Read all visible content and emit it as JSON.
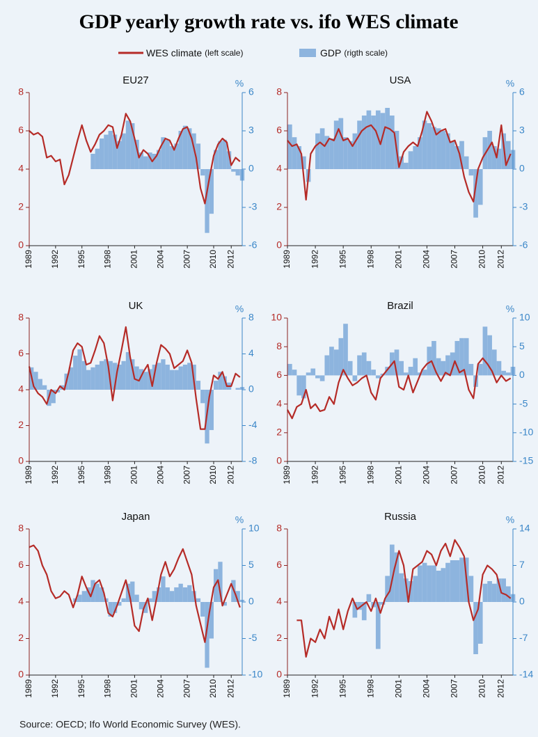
{
  "title": "GDP yearly growth rate vs. ifo WES climate",
  "legend": [
    {
      "name": "WES climate",
      "note": "(left scale)",
      "color": "#b52b27"
    },
    {
      "name": "GDP",
      "note": "(rigth scale)",
      "color": "#8db4de"
    }
  ],
  "source": "Source: OECD; Ifo World Economic Survey (WES).",
  "chart_data": [
    {
      "type": "combo",
      "title": "EU27",
      "y2label": "%",
      "x": [
        1989,
        1989.5,
        1990,
        1990.5,
        1991,
        1991.5,
        1992,
        1992.5,
        1993,
        1993.5,
        1994,
        1994.5,
        1995,
        1995.5,
        1996,
        1996.5,
        1997,
        1997.5,
        1998,
        1998.5,
        1999,
        1999.5,
        2000,
        2000.5,
        2001,
        2001.5,
        2002,
        2002.5,
        2003,
        2003.5,
        2004,
        2004.5,
        2005,
        2005.5,
        2006,
        2006.5,
        2007,
        2007.5,
        2008,
        2008.5,
        2009,
        2009.5,
        2010,
        2010.5,
        2011,
        2011.5,
        2012,
        2012.5,
        2013
      ],
      "xlim": [
        1989,
        2013.25
      ],
      "xticks": [
        1989,
        1992,
        1995,
        1998,
        2001,
        2004,
        2007,
        2010,
        2012
      ],
      "ylim": [
        0,
        8
      ],
      "yticks": [
        0,
        2,
        4,
        6,
        8
      ],
      "y2lim": [
        -6,
        6
      ],
      "y2ticks": [
        -6,
        -3,
        0,
        3,
        6
      ],
      "series": [
        {
          "type": "line",
          "axis": "y",
          "values": [
            6,
            5.8,
            5.9,
            5.7,
            4.6,
            4.7,
            4.4,
            4.5,
            3.2,
            3.7,
            4.6,
            5.5,
            6.3,
            5.5,
            4.9,
            5.3,
            5.8,
            6.0,
            6.3,
            6.2,
            5.1,
            5.8,
            6.9,
            6.5,
            5.6,
            4.6,
            5.0,
            4.8,
            4.4,
            4.7,
            5.2,
            5.6,
            5.5,
            5.0,
            5.6,
            6.1,
            6.2,
            5.6,
            4.6,
            3.0,
            2.2,
            3.5,
            4.7,
            5.3,
            5.6,
            5.4,
            4.2,
            4.6,
            4.4
          ]
        },
        {
          "type": "bar",
          "axis": "y2",
          "values": [
            null,
            null,
            null,
            null,
            null,
            null,
            null,
            null,
            null,
            null,
            null,
            null,
            null,
            null,
            1.2,
            1.6,
            2.4,
            2.7,
            3.0,
            2.7,
            2.2,
            2.8,
            3.8,
            3.6,
            2.3,
            1.3,
            1.0,
            1.3,
            1.2,
            1.5,
            2.5,
            2.3,
            1.8,
            2.0,
            3.0,
            3.4,
            3.2,
            2.8,
            2.0,
            -0.5,
            -5.0,
            -3.5,
            1.5,
            2.2,
            2.3,
            1.4,
            -0.2,
            -0.5,
            -0.9
          ]
        }
      ]
    },
    {
      "type": "combo",
      "title": "USA",
      "y2label": "%",
      "x": [
        1989,
        1989.5,
        1990,
        1990.5,
        1991,
        1991.5,
        1992,
        1992.5,
        1993,
        1993.5,
        1994,
        1994.5,
        1995,
        1995.5,
        1996,
        1996.5,
        1997,
        1997.5,
        1998,
        1998.5,
        1999,
        1999.5,
        2000,
        2000.5,
        2001,
        2001.5,
        2002,
        2002.5,
        2003,
        2003.5,
        2004,
        2004.5,
        2005,
        2005.5,
        2006,
        2006.5,
        2007,
        2007.5,
        2008,
        2008.5,
        2009,
        2009.5,
        2010,
        2010.5,
        2011,
        2011.5,
        2012,
        2012.5,
        2013
      ],
      "xlim": [
        1989,
        2013.25
      ],
      "xticks": [
        1989,
        1992,
        1995,
        1998,
        2001,
        2004,
        2007,
        2010,
        2012
      ],
      "ylim": [
        0,
        8
      ],
      "yticks": [
        0,
        2,
        4,
        6,
        8
      ],
      "y2lim": [
        -6,
        6
      ],
      "y2ticks": [
        -6,
        -3,
        0,
        3,
        6
      ],
      "series": [
        {
          "type": "line",
          "axis": "y",
          "values": [
            5.5,
            5.2,
            5.3,
            4.8,
            2.4,
            4.8,
            5.2,
            5.4,
            5.2,
            5.6,
            5.5,
            6.1,
            5.5,
            5.6,
            5.2,
            5.6,
            6.0,
            6.2,
            6.3,
            6.0,
            5.3,
            6.2,
            6.1,
            5.9,
            4.1,
            4.9,
            5.2,
            5.4,
            5.2,
            6.0,
            7.0,
            6.5,
            5.8,
            6.0,
            6.1,
            5.4,
            5.5,
            4.8,
            3.6,
            2.8,
            2.3,
            4.0,
            4.6,
            5.0,
            5.4,
            4.6,
            6.3,
            4.2,
            4.8
          ]
        },
        {
          "type": "bar",
          "axis": "y2",
          "values": [
            3.5,
            2.5,
            1.8,
            1.0,
            -1.0,
            0.0,
            2.8,
            3.2,
            2.6,
            2.4,
            3.8,
            4.0,
            2.5,
            2.2,
            2.8,
            3.8,
            4.2,
            4.6,
            4.2,
            4.6,
            4.4,
            4.8,
            4.2,
            3.0,
            1.0,
            0.5,
            1.4,
            1.8,
            2.5,
            3.8,
            3.6,
            3.3,
            3.2,
            3.0,
            2.8,
            2.2,
            1.8,
            2.2,
            1.0,
            -0.5,
            -3.8,
            -2.8,
            2.5,
            3.0,
            1.8,
            1.6,
            2.8,
            2.2,
            1.5
          ]
        }
      ]
    },
    {
      "type": "combo",
      "title": "UK",
      "y2label": "%",
      "x": [
        1989,
        1989.5,
        1990,
        1990.5,
        1991,
        1991.5,
        1992,
        1992.5,
        1993,
        1993.5,
        1994,
        1994.5,
        1995,
        1995.5,
        1996,
        1996.5,
        1997,
        1997.5,
        1998,
        1998.5,
        1999,
        1999.5,
        2000,
        2000.5,
        2001,
        2001.5,
        2002,
        2002.5,
        2003,
        2003.5,
        2004,
        2004.5,
        2005,
        2005.5,
        2006,
        2006.5,
        2007,
        2007.5,
        2008,
        2008.5,
        2009,
        2009.5,
        2010,
        2010.5,
        2011,
        2011.5,
        2012,
        2012.5,
        2013
      ],
      "xlim": [
        1989,
        2013.25
      ],
      "xticks": [
        1989,
        1992,
        1995,
        1998,
        2001,
        2004,
        2007,
        2010,
        2012
      ],
      "ylim": [
        0,
        8
      ],
      "yticks": [
        0,
        2,
        4,
        6,
        8
      ],
      "y2lim": [
        -8,
        8
      ],
      "y2ticks": [
        -8,
        -4,
        0,
        4,
        8
      ],
      "series": [
        {
          "type": "line",
          "axis": "y",
          "values": [
            5.3,
            4.2,
            3.8,
            3.6,
            3.2,
            4.0,
            3.8,
            4.2,
            4.0,
            5.0,
            6.2,
            6.6,
            6.4,
            5.4,
            5.5,
            6.2,
            7.0,
            6.6,
            5.3,
            3.4,
            5.0,
            6.2,
            7.5,
            5.8,
            4.6,
            4.5,
            5.0,
            5.4,
            4.2,
            5.5,
            6.5,
            6.3,
            6.0,
            5.2,
            5.4,
            5.6,
            6.2,
            5.5,
            3.5,
            1.8,
            1.8,
            3.6,
            4.8,
            4.6,
            5.0,
            4.2,
            4.2,
            4.9,
            4.7
          ]
        },
        {
          "type": "bar",
          "axis": "y2",
          "values": [
            2.5,
            2.0,
            1.2,
            0.5,
            -1.8,
            -1.5,
            -0.3,
            0.5,
            1.8,
            2.5,
            3.8,
            4.5,
            3.2,
            2.2,
            2.5,
            2.8,
            3.2,
            3.4,
            3.2,
            3.0,
            2.8,
            3.2,
            4.2,
            3.4,
            2.6,
            2.3,
            2.0,
            2.3,
            2.8,
            3.0,
            3.4,
            2.8,
            2.2,
            2.2,
            2.6,
            2.8,
            3.0,
            2.8,
            1.0,
            -1.5,
            -6.0,
            -4.5,
            1.0,
            2.0,
            1.5,
            0.8,
            0.0,
            0.2,
            0.3
          ]
        }
      ]
    },
    {
      "type": "combo",
      "title": "Brazil",
      "y2label": "%",
      "x": [
        1989,
        1989.5,
        1990,
        1990.5,
        1991,
        1991.5,
        1992,
        1992.5,
        1993,
        1993.5,
        1994,
        1994.5,
        1995,
        1995.5,
        1996,
        1996.5,
        1997,
        1997.5,
        1998,
        1998.5,
        1999,
        1999.5,
        2000,
        2000.5,
        2001,
        2001.5,
        2002,
        2002.5,
        2003,
        2003.5,
        2004,
        2004.5,
        2005,
        2005.5,
        2006,
        2006.5,
        2007,
        2007.5,
        2008,
        2008.5,
        2009,
        2009.5,
        2010,
        2010.5,
        2011,
        2011.5,
        2012,
        2012.5,
        2013
      ],
      "xlim": [
        1989,
        2013.25
      ],
      "xticks": [
        1989,
        1992,
        1995,
        1998,
        2001,
        2004,
        2007,
        2010,
        2012
      ],
      "ylim": [
        0,
        10
      ],
      "yticks": [
        0,
        2,
        4,
        6,
        8,
        10
      ],
      "y2lim": [
        -15,
        10
      ],
      "y2ticks": [
        -15,
        -10,
        -5,
        0,
        5,
        10
      ],
      "series": [
        {
          "type": "line",
          "axis": "y",
          "values": [
            3.6,
            3.0,
            3.8,
            4.0,
            5.0,
            3.7,
            4.0,
            3.5,
            3.6,
            4.5,
            4.0,
            5.5,
            6.4,
            5.8,
            5.3,
            5.5,
            5.8,
            6.0,
            4.8,
            4.3,
            5.8,
            6.2,
            6.6,
            7.0,
            5.2,
            5.0,
            6.0,
            4.8,
            5.6,
            6.4,
            6.8,
            7.0,
            6.2,
            5.6,
            6.2,
            6.0,
            7.0,
            6.2,
            6.4,
            5.0,
            4.4,
            6.8,
            7.2,
            6.8,
            6.3,
            5.5,
            6.0,
            5.6,
            5.8
          ]
        },
        {
          "type": "bar",
          "axis": "y2",
          "values": [
            2.0,
            1.0,
            -3.5,
            -4.0,
            0.5,
            1.2,
            -0.5,
            -1.0,
            3.5,
            5.0,
            4.5,
            6.5,
            9.0,
            2.5,
            -1.0,
            3.5,
            4.0,
            2.5,
            1.0,
            -0.5,
            0.3,
            1.5,
            4.0,
            4.5,
            2.5,
            0.5,
            1.5,
            3.0,
            0.5,
            1.0,
            5.0,
            6.0,
            3.0,
            2.5,
            3.5,
            4.0,
            6.0,
            6.5,
            6.5,
            2.0,
            -2.0,
            2.0,
            8.5,
            7.0,
            4.5,
            2.5,
            0.8,
            0.5,
            1.5
          ]
        }
      ]
    },
    {
      "type": "combo",
      "title": "Japan",
      "y2label": "%",
      "x": [
        1989,
        1989.5,
        1990,
        1990.5,
        1991,
        1991.5,
        1992,
        1992.5,
        1993,
        1993.5,
        1994,
        1994.5,
        1995,
        1995.5,
        1996,
        1996.5,
        1997,
        1997.5,
        1998,
        1998.5,
        1999,
        1999.5,
        2000,
        2000.5,
        2001,
        2001.5,
        2002,
        2002.5,
        2003,
        2003.5,
        2004,
        2004.5,
        2005,
        2005.5,
        2006,
        2006.5,
        2007,
        2007.5,
        2008,
        2008.5,
        2009,
        2009.5,
        2010,
        2010.5,
        2011,
        2011.5,
        2012,
        2012.5,
        2013
      ],
      "xlim": [
        1989,
        2013.25
      ],
      "xticks": [
        1989,
        1992,
        1995,
        1998,
        2001,
        2004,
        2007,
        2010,
        2012
      ],
      "ylim": [
        0,
        8
      ],
      "yticks": [
        0,
        2,
        4,
        6,
        8
      ],
      "y2lim": [
        -10,
        10
      ],
      "y2ticks": [
        -10,
        -5,
        0,
        5,
        10
      ],
      "series": [
        {
          "type": "line",
          "axis": "y",
          "values": [
            7.0,
            7.1,
            6.8,
            6.0,
            5.5,
            4.6,
            4.2,
            4.3,
            4.6,
            4.4,
            3.7,
            4.4,
            5.4,
            4.8,
            4.3,
            5.0,
            5.2,
            4.5,
            3.4,
            3.2,
            3.8,
            4.5,
            5.2,
            4.2,
            2.7,
            2.4,
            3.6,
            4.2,
            3.0,
            4.2,
            5.5,
            6.2,
            5.4,
            5.8,
            6.4,
            6.9,
            6.2,
            5.5,
            3.8,
            2.8,
            1.8,
            3.4,
            4.8,
            5.2,
            3.8,
            4.4,
            5.0,
            4.4,
            3.7
          ]
        },
        {
          "type": "bar",
          "axis": "y2",
          "values": [
            null,
            null,
            null,
            null,
            null,
            null,
            null,
            null,
            null,
            null,
            0.5,
            1.0,
            1.5,
            2.0,
            3.0,
            2.5,
            2.0,
            0.5,
            -2.0,
            -1.5,
            -0.5,
            0.5,
            2.5,
            2.8,
            1.0,
            -1.0,
            -1.5,
            0.5,
            1.5,
            2.0,
            3.5,
            2.0,
            1.5,
            2.0,
            2.5,
            2.0,
            2.3,
            1.5,
            0.5,
            -2.0,
            -9.0,
            -5.0,
            4.5,
            5.5,
            -0.5,
            0.0,
            3.0,
            1.5,
            0.3
          ]
        }
      ]
    },
    {
      "type": "combo",
      "title": "Russia",
      "y2label": "%",
      "x": [
        1989,
        1989.5,
        1990,
        1990.5,
        1991,
        1991.5,
        1992,
        1992.5,
        1993,
        1993.5,
        1994,
        1994.5,
        1995,
        1995.5,
        1996,
        1996.5,
        1997,
        1997.5,
        1998,
        1998.5,
        1999,
        1999.5,
        2000,
        2000.5,
        2001,
        2001.5,
        2002,
        2002.5,
        2003,
        2003.5,
        2004,
        2004.5,
        2005,
        2005.5,
        2006,
        2006.5,
        2007,
        2007.5,
        2008,
        2008.5,
        2009,
        2009.5,
        2010,
        2010.5,
        2011,
        2011.5,
        2012,
        2012.5,
        2013
      ],
      "xlim": [
        1989,
        2013.25
      ],
      "xticks": [
        1989,
        1992,
        1995,
        1998,
        2001,
        2004,
        2007,
        2010,
        2012
      ],
      "ylim": [
        0,
        8
      ],
      "yticks": [
        0,
        2,
        4,
        6,
        8
      ],
      "y2lim": [
        -14,
        14
      ],
      "y2ticks": [
        -14,
        -7,
        0,
        7,
        14
      ],
      "series": [
        {
          "type": "line",
          "axis": "y",
          "values": [
            null,
            null,
            3.0,
            3.0,
            1.0,
            2.0,
            1.8,
            2.5,
            2.0,
            3.2,
            2.5,
            3.6,
            2.5,
            3.5,
            4.2,
            3.6,
            3.8,
            4.0,
            3.5,
            4.2,
            3.4,
            4.2,
            4.6,
            5.8,
            6.8,
            6.0,
            4.0,
            5.8,
            6.0,
            6.2,
            6.8,
            6.6,
            6.0,
            6.8,
            7.2,
            6.5,
            7.4,
            7.0,
            6.5,
            4.0,
            3.0,
            3.6,
            5.5,
            6.0,
            5.8,
            5.5,
            4.5,
            4.4,
            4.2
          ]
        },
        {
          "type": "bar",
          "axis": "y2",
          "values": [
            null,
            null,
            null,
            null,
            null,
            null,
            null,
            null,
            null,
            null,
            null,
            null,
            null,
            null,
            -3.0,
            -1.5,
            -3.5,
            1.5,
            -1.0,
            -9.0,
            -0.5,
            5.0,
            11.0,
            9.5,
            5.5,
            4.5,
            4.0,
            5.0,
            7.0,
            7.5,
            7.0,
            7.0,
            6.0,
            6.5,
            7.5,
            8.0,
            8.0,
            8.5,
            8.5,
            5.0,
            -10.0,
            -8.0,
            3.5,
            4.0,
            3.5,
            4.5,
            4.5,
            3.0,
            1.5
          ]
        }
      ]
    }
  ]
}
